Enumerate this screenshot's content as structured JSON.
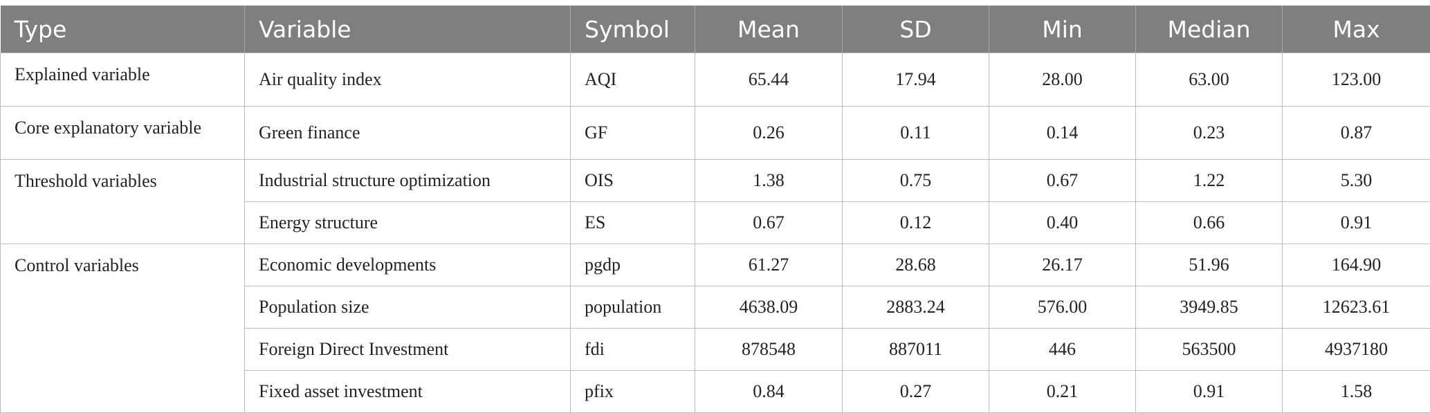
{
  "table": {
    "header": [
      "Type",
      "Variable",
      "Symbol",
      "Mean",
      "SD",
      "Min",
      "Median",
      "Max"
    ],
    "groups": [
      {
        "type": "Explained variable",
        "rows": [
          [
            "Air quality index",
            "AQI",
            "65.44",
            "17.94",
            "28.00",
            "63.00",
            "123.00"
          ]
        ]
      },
      {
        "type": "Core explanatory variable",
        "rows": [
          [
            "Green finance",
            "GF",
            "0.26",
            "0.11",
            "0.14",
            "0.23",
            "0.87"
          ]
        ]
      },
      {
        "type": "Threshold variables",
        "rows": [
          [
            "Industrial structure optimization",
            "OIS",
            "1.38",
            "0.75",
            "0.67",
            "1.22",
            "5.30"
          ],
          [
            "Energy structure",
            "ES",
            "0.67",
            "0.12",
            "0.40",
            "0.66",
            "0.91"
          ]
        ]
      },
      {
        "type": "Control variables",
        "rows": [
          [
            "Economic developments",
            "pgdp",
            "61.27",
            "28.68",
            "26.17",
            "51.96",
            "164.90"
          ],
          [
            "Population size",
            "population",
            "4638.09",
            "2883.24",
            "576.00",
            "3949.85",
            "12623.61"
          ],
          [
            "Foreign Direct Investment",
            "fdi",
            "878548",
            "887011",
            "446",
            "563500",
            "4937180"
          ],
          [
            "Fixed asset investment",
            "pfix",
            "0.84",
            "0.27",
            "0.21",
            "0.91",
            "1.58"
          ]
        ]
      }
    ]
  }
}
